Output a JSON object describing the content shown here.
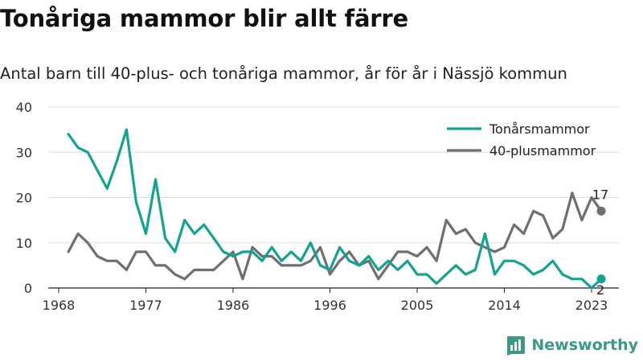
{
  "title": "Tonåriga mammor blir allt färre",
  "subtitle": "Antal barn till 40-plus- och tonåriga mammor, år för år i Nässjö kommun",
  "brand": {
    "name": "Newsworthy",
    "color": "#3a9a86"
  },
  "chart_data": {
    "type": "line",
    "xlim": [
      1968,
      2023
    ],
    "ylim": [
      0,
      40
    ],
    "x_ticks": [
      1968,
      1977,
      1986,
      1996,
      2005,
      2014,
      2023
    ],
    "y_ticks": [
      0,
      10,
      20,
      30,
      40
    ],
    "grid": "horizontal",
    "legend": "top-right",
    "series": [
      {
        "name": "Tonårsmammor",
        "color": "#12a391",
        "end_label": "2",
        "points": [
          [
            1969,
            34
          ],
          [
            1970,
            31
          ],
          [
            1971,
            30
          ],
          [
            1972,
            26
          ],
          [
            1973,
            22
          ],
          [
            1974,
            28
          ],
          [
            1975,
            35
          ],
          [
            1976,
            19
          ],
          [
            1977,
            12
          ],
          [
            1978,
            24
          ],
          [
            1979,
            11
          ],
          [
            1980,
            8
          ],
          [
            1981,
            15
          ],
          [
            1982,
            12
          ],
          [
            1983,
            14
          ],
          [
            1984,
            11
          ],
          [
            1985,
            8
          ],
          [
            1986,
            7
          ],
          [
            1987,
            8
          ],
          [
            1988,
            8
          ],
          [
            1989,
            6
          ],
          [
            1990,
            9
          ],
          [
            1991,
            6
          ],
          [
            1992,
            8
          ],
          [
            1993,
            6
          ],
          [
            1994,
            10
          ],
          [
            1995,
            5
          ],
          [
            1996,
            4
          ],
          [
            1997,
            9
          ],
          [
            1998,
            6
          ],
          [
            1999,
            5
          ],
          [
            2000,
            7
          ],
          [
            2001,
            4
          ],
          [
            2002,
            6
          ],
          [
            2003,
            4
          ],
          [
            2004,
            6
          ],
          [
            2005,
            3
          ],
          [
            2006,
            3
          ],
          [
            2007,
            1
          ],
          [
            2008,
            3
          ],
          [
            2009,
            5
          ],
          [
            2010,
            3
          ],
          [
            2011,
            4
          ],
          [
            2012,
            12
          ],
          [
            2013,
            3
          ],
          [
            2014,
            6
          ],
          [
            2015,
            6
          ],
          [
            2016,
            5
          ],
          [
            2017,
            3
          ],
          [
            2018,
            4
          ],
          [
            2019,
            6
          ],
          [
            2020,
            3
          ],
          [
            2021,
            2
          ],
          [
            2022,
            2
          ],
          [
            2023,
            0
          ],
          [
            2024,
            2
          ]
        ]
      },
      {
        "name": "40-plusmammor",
        "color": "#6e6e73",
        "end_label": "17",
        "points": [
          [
            1969,
            8
          ],
          [
            1970,
            12
          ],
          [
            1971,
            10
          ],
          [
            1972,
            7
          ],
          [
            1973,
            6
          ],
          [
            1974,
            6
          ],
          [
            1975,
            4
          ],
          [
            1976,
            8
          ],
          [
            1977,
            8
          ],
          [
            1978,
            5
          ],
          [
            1979,
            5
          ],
          [
            1980,
            3
          ],
          [
            1981,
            2
          ],
          [
            1982,
            4
          ],
          [
            1983,
            4
          ],
          [
            1984,
            4
          ],
          [
            1985,
            6
          ],
          [
            1986,
            8
          ],
          [
            1987,
            2
          ],
          [
            1988,
            9
          ],
          [
            1989,
            7
          ],
          [
            1990,
            7
          ],
          [
            1991,
            5
          ],
          [
            1992,
            5
          ],
          [
            1993,
            5
          ],
          [
            1994,
            6
          ],
          [
            1995,
            9
          ],
          [
            1996,
            3
          ],
          [
            1997,
            6
          ],
          [
            1998,
            8
          ],
          [
            1999,
            5
          ],
          [
            2000,
            6
          ],
          [
            2001,
            2
          ],
          [
            2002,
            5
          ],
          [
            2003,
            8
          ],
          [
            2004,
            8
          ],
          [
            2005,
            7
          ],
          [
            2006,
            9
          ],
          [
            2007,
            6
          ],
          [
            2008,
            15
          ],
          [
            2009,
            12
          ],
          [
            2010,
            13
          ],
          [
            2011,
            10
          ],
          [
            2012,
            9
          ],
          [
            2013,
            8
          ],
          [
            2014,
            9
          ],
          [
            2015,
            14
          ],
          [
            2016,
            12
          ],
          [
            2017,
            17
          ],
          [
            2018,
            16
          ],
          [
            2019,
            11
          ],
          [
            2020,
            13
          ],
          [
            2021,
            21
          ],
          [
            2022,
            15
          ],
          [
            2023,
            20
          ],
          [
            2024,
            17
          ]
        ]
      }
    ]
  }
}
